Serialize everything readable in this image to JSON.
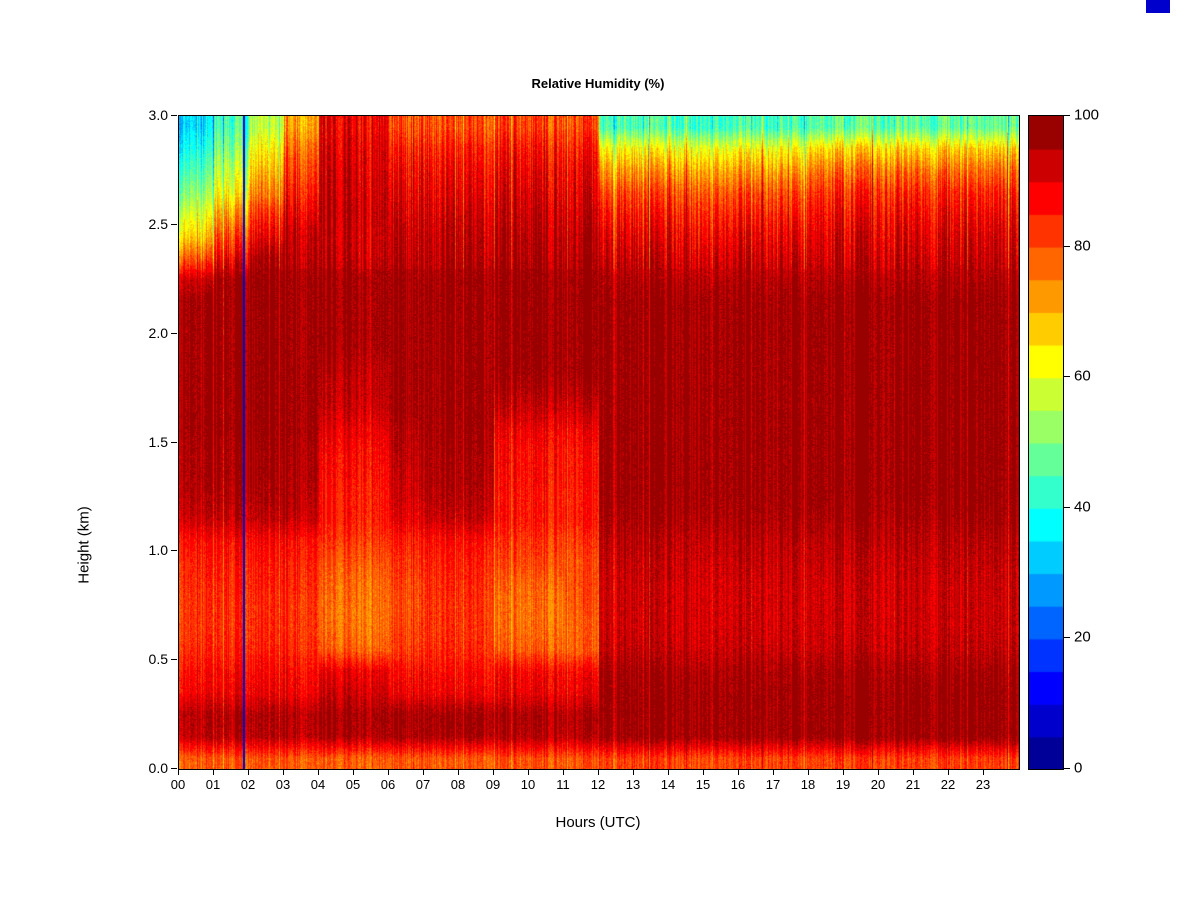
{
  "page": {
    "background": "#FFFFFF"
  },
  "ui": {
    "top_right_mark_color": "#0000CC"
  },
  "chart_data": {
    "type": "heatmap",
    "title": "Relative Humidity (%)",
    "xlabel": "Hours (UTC)",
    "ylabel": "Height (km)",
    "x_range": [
      0,
      24
    ],
    "y_range": [
      0,
      3
    ],
    "x_tick_values": [
      0,
      1,
      2,
      3,
      4,
      5,
      6,
      7,
      8,
      9,
      10,
      11,
      12,
      13,
      14,
      15,
      16,
      17,
      18,
      19,
      20,
      21,
      22,
      23
    ],
    "x_tick_labels": [
      "00",
      "01",
      "02",
      "03",
      "04",
      "05",
      "06",
      "07",
      "08",
      "09",
      "10",
      "11",
      "12",
      "13",
      "14",
      "15",
      "16",
      "17",
      "18",
      "19",
      "20",
      "21",
      "22",
      "23"
    ],
    "y_tick_values": [
      0,
      0.5,
      1,
      1.5,
      2,
      2.5,
      3
    ],
    "y_tick_labels": [
      "0.0",
      "0.5",
      "1.0",
      "1.5",
      "2.0",
      "2.5",
      "3.0"
    ],
    "value_range": [
      0,
      100
    ],
    "grid_on": false,
    "colorbar": {
      "tick_values": [
        0,
        20,
        40,
        60,
        80,
        100
      ],
      "tick_labels": [
        "0",
        "20",
        "40",
        "60",
        "80",
        "100"
      ],
      "n_levels": 20,
      "level_step": 5,
      "colors": [
        "#000099",
        "#0000CC",
        "#0000FF",
        "#0033FF",
        "#0065FF",
        "#0099FF",
        "#00CCFF",
        "#00FFFF",
        "#33FFCC",
        "#65FF99",
        "#99FF65",
        "#CCFF33",
        "#FFFF00",
        "#FFCC00",
        "#FF9900",
        "#FF6600",
        "#FF3300",
        "#FF0000",
        "#CC0000",
        "#990000"
      ]
    },
    "grid": {
      "hours": [
        0,
        1,
        2,
        3,
        4,
        5,
        6,
        7,
        8,
        9,
        10,
        11,
        12,
        13,
        14,
        15,
        16,
        17,
        18,
        19,
        20,
        21,
        22,
        23
      ],
      "height_step_km": 0.1,
      "rows_bottom_to_top": true,
      "values_percent_rh": [
        [
          79,
          79,
          79,
          79,
          79,
          79,
          79,
          79,
          79,
          79,
          79,
          79,
          81,
          81,
          81,
          81,
          81,
          81,
          81,
          81,
          81,
          81,
          81,
          81
        ],
        [
          94,
          94,
          94,
          94,
          96,
          96,
          96,
          96,
          96,
          94,
          94,
          94,
          97,
          97,
          97,
          97,
          97,
          97,
          97,
          97,
          97,
          97,
          97,
          97
        ],
        [
          95,
          95,
          95,
          95,
          97,
          97,
          97,
          97,
          97,
          95,
          95,
          95,
          97,
          97,
          97,
          97,
          97,
          97,
          97,
          97,
          97,
          97,
          97,
          97
        ],
        [
          89,
          89,
          89,
          89,
          93,
          93,
          89,
          89,
          89,
          89,
          89,
          89,
          97,
          97,
          97,
          97,
          97,
          97,
          97,
          97,
          97,
          97,
          97,
          97
        ],
        [
          87,
          87,
          87,
          87,
          90,
          90,
          87,
          87,
          87,
          87,
          87,
          87,
          96,
          96,
          96,
          96,
          96,
          96,
          96,
          96,
          96,
          96,
          96,
          96
        ],
        [
          84,
          84,
          84,
          84,
          79,
          79,
          82,
          84,
          84,
          78,
          78,
          78,
          93,
          93,
          93,
          93,
          93,
          93,
          93,
          93,
          93,
          93,
          93,
          93
        ],
        [
          83,
          83,
          83,
          83,
          77,
          77,
          81,
          83,
          83,
          76,
          76,
          78,
          92,
          92,
          92,
          92,
          92,
          92,
          92,
          92,
          92,
          92,
          92,
          92
        ],
        [
          83,
          83,
          83,
          83,
          77,
          77,
          80,
          83,
          83,
          76,
          76,
          79,
          92,
          92,
          92,
          92,
          92,
          92,
          92,
          92,
          92,
          92,
          92,
          92
        ],
        [
          84,
          84,
          84,
          84,
          78,
          78,
          81,
          84,
          84,
          77,
          77,
          80,
          92,
          92,
          92,
          92,
          92,
          92,
          92,
          92,
          92,
          92,
          92,
          92
        ],
        [
          85,
          85,
          85,
          85,
          80,
          80,
          83,
          85,
          85,
          80,
          80,
          80,
          93,
          93,
          93,
          93,
          93,
          93,
          93,
          93,
          93,
          93,
          93,
          93
        ],
        [
          87,
          87,
          87,
          87,
          83,
          83,
          85,
          87,
          87,
          82,
          82,
          82,
          94,
          94,
          94,
          94,
          94,
          94,
          94,
          94,
          94,
          94,
          94,
          94
        ],
        [
          93,
          93,
          93,
          93,
          86,
          86,
          90,
          93,
          93,
          85,
          85,
          85,
          96,
          96,
          96,
          96,
          96,
          96,
          96,
          96,
          96,
          96,
          96,
          96
        ],
        [
          95,
          95,
          95,
          95,
          86,
          86,
          92,
          95,
          95,
          85,
          85,
          85,
          97,
          97,
          97,
          97,
          97,
          97,
          97,
          97,
          97,
          97,
          97,
          97
        ],
        [
          96,
          96,
          96,
          96,
          87,
          87,
          93,
          96,
          96,
          86,
          86,
          86,
          97,
          97,
          97,
          97,
          97,
          97,
          97,
          97,
          97,
          97,
          97,
          97
        ],
        [
          96,
          96,
          96,
          96,
          88,
          88,
          94,
          96,
          96,
          86,
          86,
          86,
          97,
          97,
          97,
          97,
          97,
          97,
          97,
          97,
          97,
          97,
          97,
          97
        ],
        [
          97,
          97,
          97,
          97,
          90,
          90,
          95,
          97,
          97,
          88,
          88,
          88,
          97,
          97,
          97,
          97,
          97,
          97,
          97,
          97,
          97,
          97,
          97,
          97
        ],
        [
          97,
          97,
          97,
          97,
          93,
          93,
          97,
          97,
          97,
          92,
          92,
          92,
          97,
          97,
          97,
          97,
          97,
          97,
          97,
          97,
          97,
          97,
          97,
          97
        ],
        [
          97,
          97,
          97,
          97,
          94,
          94,
          97,
          97,
          97,
          95,
          95,
          95,
          97,
          97,
          97,
          97,
          97,
          97,
          97,
          97,
          97,
          97,
          97,
          97
        ],
        [
          97,
          97,
          97,
          97,
          95,
          95,
          97,
          97,
          97,
          97,
          97,
          97,
          97,
          97,
          97,
          97,
          97,
          97,
          97,
          97,
          97,
          97,
          97,
          97
        ],
        [
          97,
          97,
          97,
          97,
          97,
          97,
          97,
          97,
          97,
          97,
          97,
          97,
          97,
          97,
          97,
          97,
          97,
          97,
          97,
          97,
          97,
          97,
          97,
          97
        ],
        [
          97,
          97,
          97,
          97,
          97,
          97,
          97,
          97,
          97,
          97,
          97,
          97,
          97,
          97,
          97,
          97,
          97,
          97,
          97,
          97,
          97,
          97,
          97,
          97
        ],
        [
          97,
          97,
          97,
          97,
          97,
          97,
          97,
          97,
          97,
          97,
          97,
          97,
          97,
          97,
          97,
          97,
          97,
          97,
          97,
          97,
          97,
          97,
          97,
          97
        ],
        [
          93,
          97,
          97,
          97,
          97,
          97,
          97,
          97,
          97,
          97,
          97,
          97,
          95,
          95,
          95,
          95,
          95,
          95,
          95,
          95,
          95,
          95,
          95,
          95
        ],
        [
          80,
          88,
          95,
          95,
          95,
          95,
          95,
          95,
          95,
          95,
          95,
          95,
          92,
          92,
          92,
          92,
          92,
          92,
          92,
          92,
          92,
          92,
          92,
          92
        ],
        [
          68,
          80,
          88,
          94,
          94,
          94,
          94,
          94,
          94,
          94,
          94,
          94,
          89,
          89,
          89,
          89,
          89,
          89,
          90,
          90,
          90,
          90,
          90,
          90
        ],
        [
          60,
          72,
          82,
          90,
          95,
          95,
          92,
          92,
          92,
          92,
          92,
          92,
          85,
          85,
          85,
          85,
          85,
          85,
          87,
          87,
          87,
          87,
          87,
          87
        ],
        [
          52,
          62,
          74,
          86,
          94,
          94,
          90,
          90,
          90,
          90,
          90,
          90,
          80,
          80,
          80,
          80,
          80,
          80,
          83,
          83,
          83,
          83,
          83,
          83
        ],
        [
          46,
          56,
          68,
          82,
          93,
          93,
          88,
          88,
          88,
          88,
          88,
          88,
          72,
          72,
          72,
          72,
          72,
          72,
          76,
          76,
          76,
          76,
          76,
          76
        ],
        [
          40,
          50,
          62,
          78,
          92,
          92,
          85,
          85,
          85,
          85,
          85,
          85,
          62,
          62,
          62,
          62,
          62,
          62,
          66,
          66,
          66,
          66,
          66,
          66
        ],
        [
          35,
          44,
          55,
          72,
          90,
          90,
          80,
          80,
          80,
          80,
          80,
          80,
          44,
          44,
          44,
          44,
          44,
          44,
          46,
          46,
          46,
          46,
          46,
          46
        ]
      ]
    },
    "annotations": [
      {
        "type": "vline",
        "x_hour": 1.82,
        "value": 5,
        "note": "narrow dark-blue artifact line"
      }
    ]
  }
}
